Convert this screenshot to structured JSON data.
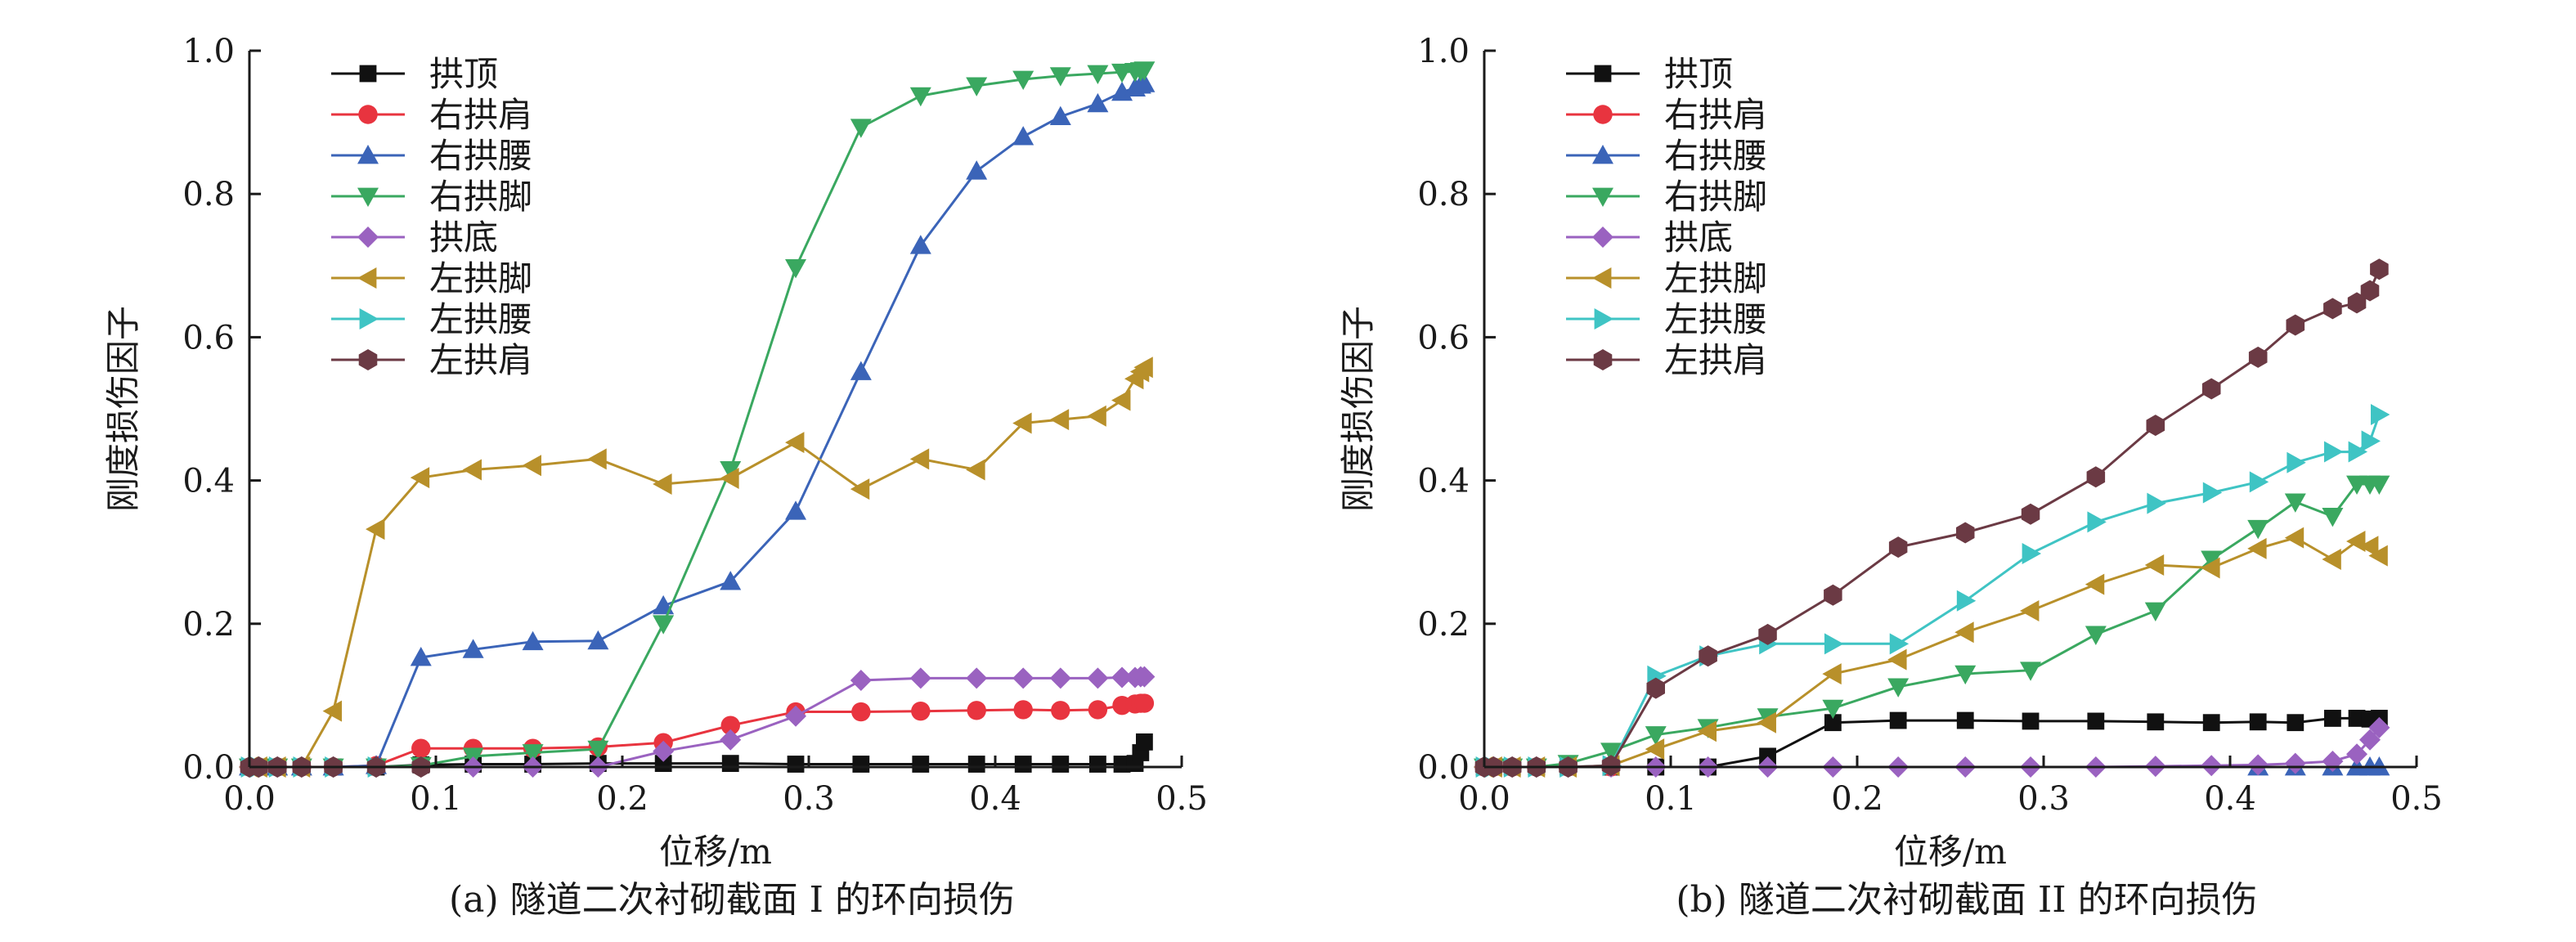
{
  "chart_data": [
    {
      "type": "line",
      "caption": "(a) 隧道二次衬砌截面 I 的环向损伤",
      "xlabel": "位移/m",
      "ylabel": "刚度损伤因子",
      "xlim": [
        0,
        0.5
      ],
      "ylim": [
        0,
        1.0
      ],
      "xticks": [
        "0.0",
        "0.1",
        "0.2",
        "0.3",
        "0.4",
        "0.5"
      ],
      "yticks": [
        "0.0",
        "0.2",
        "0.4",
        "0.6",
        "0.8",
        "1.0"
      ],
      "grid": false,
      "legend": "top-left",
      "series": [
        {
          "name": "拱顶",
          "color": "#111111",
          "marker": "square",
          "x": [
            0,
            0.005,
            0.015,
            0.028,
            0.045,
            0.068,
            0.092,
            0.12,
            0.152,
            0.187,
            0.222,
            0.258,
            0.293,
            0.328,
            0.36,
            0.39,
            0.415,
            0.435,
            0.455,
            0.468,
            0.475,
            0.478,
            0.48
          ],
          "y": [
            0,
            0,
            0,
            0,
            0,
            0,
            0.003,
            0.004,
            0.004,
            0.005,
            0.005,
            0.005,
            0.004,
            0.004,
            0.004,
            0.004,
            0.004,
            0.004,
            0.004,
            0.004,
            0.005,
            0.02,
            0.035
          ]
        },
        {
          "name": "右拱肩",
          "color": "#e8343f",
          "marker": "circle",
          "x": [
            0,
            0.005,
            0.015,
            0.028,
            0.045,
            0.068,
            0.092,
            0.12,
            0.152,
            0.187,
            0.222,
            0.258,
            0.293,
            0.328,
            0.36,
            0.39,
            0.415,
            0.435,
            0.455,
            0.468,
            0.475,
            0.478,
            0.48
          ],
          "y": [
            0,
            0,
            0,
            0,
            0,
            0.002,
            0.026,
            0.026,
            0.026,
            0.028,
            0.034,
            0.058,
            0.077,
            0.077,
            0.078,
            0.079,
            0.08,
            0.079,
            0.08,
            0.086,
            0.088,
            0.089,
            0.089
          ]
        },
        {
          "name": "右拱腰",
          "color": "#3b64b8",
          "marker": "triangle-up",
          "x": [
            0,
            0.005,
            0.015,
            0.028,
            0.045,
            0.068,
            0.092,
            0.12,
            0.152,
            0.187,
            0.222,
            0.258,
            0.293,
            0.328,
            0.36,
            0.39,
            0.415,
            0.435,
            0.455,
            0.468,
            0.475,
            0.478,
            0.48
          ],
          "y": [
            0,
            0,
            0,
            0,
            0,
            0.002,
            0.153,
            0.164,
            0.175,
            0.176,
            0.225,
            0.259,
            0.357,
            0.552,
            0.728,
            0.832,
            0.88,
            0.908,
            0.926,
            0.942,
            0.948,
            0.952,
            0.954
          ]
        },
        {
          "name": "右拱脚",
          "color": "#3aa860",
          "marker": "triangle-down",
          "x": [
            0,
            0.005,
            0.015,
            0.028,
            0.045,
            0.068,
            0.092,
            0.12,
            0.152,
            0.187,
            0.222,
            0.258,
            0.293,
            0.328,
            0.36,
            0.39,
            0.415,
            0.435,
            0.455,
            0.468,
            0.475,
            0.478,
            0.48
          ],
          "y": [
            0,
            0,
            0,
            0,
            0,
            0,
            0.002,
            0.015,
            0.02,
            0.025,
            0.2,
            0.415,
            0.697,
            0.893,
            0.937,
            0.951,
            0.96,
            0.965,
            0.968,
            0.97,
            0.971,
            0.972,
            0.973
          ]
        },
        {
          "name": "拱底",
          "color": "#9a62c0",
          "marker": "diamond",
          "x": [
            0,
            0.005,
            0.015,
            0.028,
            0.045,
            0.068,
            0.092,
            0.12,
            0.152,
            0.187,
            0.222,
            0.258,
            0.293,
            0.328,
            0.36,
            0.39,
            0.415,
            0.435,
            0.455,
            0.468,
            0.475,
            0.478,
            0.48
          ],
          "y": [
            0,
            0,
            0,
            0,
            0,
            0,
            0,
            0,
            0,
            0,
            0.022,
            0.038,
            0.071,
            0.121,
            0.124,
            0.124,
            0.124,
            0.124,
            0.124,
            0.125,
            0.125,
            0.126,
            0.126
          ]
        },
        {
          "name": "左拱脚",
          "color": "#b8902a",
          "marker": "triangle-left",
          "x": [
            0,
            0.005,
            0.015,
            0.028,
            0.045,
            0.068,
            0.092,
            0.12,
            0.152,
            0.187,
            0.222,
            0.258,
            0.293,
            0.328,
            0.36,
            0.39,
            0.415,
            0.435,
            0.455,
            0.468,
            0.475,
            0.478,
            0.48
          ],
          "y": [
            0,
            0,
            0,
            0,
            0.078,
            0.332,
            0.404,
            0.415,
            0.421,
            0.43,
            0.395,
            0.403,
            0.453,
            0.388,
            0.43,
            0.415,
            0.48,
            0.485,
            0.49,
            0.512,
            0.542,
            0.552,
            0.558
          ]
        },
        {
          "name": "左拱腰",
          "color": "#3fc4c4",
          "marker": "triangle-right",
          "x": [
            0,
            0.005,
            0.015,
            0.028,
            0.045,
            0.068
          ],
          "y": [
            0,
            0,
            0,
            0,
            0,
            0
          ]
        },
        {
          "name": "左拱肩",
          "color": "#6b3a44",
          "marker": "hexagon",
          "x": [
            0,
            0.005,
            0.015,
            0.028,
            0.045,
            0.068,
            0.092
          ],
          "y": [
            0,
            0,
            0,
            0,
            0,
            0,
            0
          ]
        }
      ]
    },
    {
      "type": "line",
      "caption": "(b) 隧道二次衬砌截面 II 的环向损伤",
      "xlabel": "位移/m",
      "ylabel": "刚度损伤因子",
      "xlim": [
        0,
        0.5
      ],
      "ylim": [
        0,
        1.0
      ],
      "xticks": [
        "0.0",
        "0.1",
        "0.2",
        "0.3",
        "0.4",
        "0.5"
      ],
      "yticks": [
        "0.0",
        "0.2",
        "0.4",
        "0.6",
        "0.8",
        "1.0"
      ],
      "grid": false,
      "legend": "top-left",
      "series": [
        {
          "name": "拱顶",
          "color": "#111111",
          "marker": "square",
          "x": [
            0,
            0.005,
            0.015,
            0.028,
            0.045,
            0.068,
            0.092,
            0.12,
            0.152,
            0.187,
            0.222,
            0.258,
            0.293,
            0.328,
            0.36,
            0.39,
            0.415,
            0.435,
            0.455,
            0.468,
            0.475,
            0.48
          ],
          "y": [
            0,
            0,
            0,
            0,
            0,
            0,
            0,
            0,
            0.015,
            0.062,
            0.065,
            0.065,
            0.064,
            0.064,
            0.063,
            0.062,
            0.063,
            0.062,
            0.068,
            0.068,
            0.067,
            0.068
          ]
        },
        {
          "name": "右拱肩",
          "color": "#e8343f",
          "marker": "circle",
          "x": [
            0,
            0.005,
            0.015,
            0.028,
            0.045,
            0.068
          ],
          "y": [
            0,
            0,
            0,
            0,
            0,
            0
          ]
        },
        {
          "name": "右拱腰",
          "color": "#3b64b8",
          "marker": "triangle-up",
          "x": [
            0.415,
            0.435,
            0.455,
            0.468,
            0.475,
            0.48
          ],
          "y": [
            0,
            0,
            0,
            0,
            0,
            0
          ]
        },
        {
          "name": "右拱脚",
          "color": "#3aa860",
          "marker": "triangle-down",
          "x": [
            0,
            0.005,
            0.015,
            0.028,
            0.045,
            0.068,
            0.092,
            0.12,
            0.152,
            0.187,
            0.222,
            0.258,
            0.293,
            0.328,
            0.36,
            0.39,
            0.415,
            0.435,
            0.455,
            0.468,
            0.475,
            0.48
          ],
          "y": [
            0,
            0,
            0,
            0,
            0.005,
            0.022,
            0.045,
            0.055,
            0.07,
            0.082,
            0.112,
            0.13,
            0.135,
            0.185,
            0.218,
            0.29,
            0.333,
            0.37,
            0.35,
            0.395,
            0.395,
            0.395
          ]
        },
        {
          "name": "拱底",
          "color": "#9a62c0",
          "marker": "diamond",
          "x": [
            0,
            0.005,
            0.015,
            0.028,
            0.045,
            0.068,
            0.092,
            0.12,
            0.152,
            0.187,
            0.222,
            0.258,
            0.293,
            0.328,
            0.36,
            0.39,
            0.415,
            0.435,
            0.455,
            0.468,
            0.475,
            0.48
          ],
          "y": [
            0,
            0,
            0,
            0,
            0,
            0,
            0,
            0,
            0,
            0,
            0,
            0,
            0,
            0,
            0.001,
            0.002,
            0.003,
            0.005,
            0.008,
            0.018,
            0.038,
            0.055
          ]
        },
        {
          "name": "左拱脚",
          "color": "#b8902a",
          "marker": "triangle-left",
          "x": [
            0,
            0.005,
            0.015,
            0.028,
            0.045,
            0.068,
            0.092,
            0.12,
            0.152,
            0.187,
            0.222,
            0.258,
            0.293,
            0.328,
            0.36,
            0.39,
            0.415,
            0.435,
            0.455,
            0.468,
            0.475,
            0.48
          ],
          "y": [
            0,
            0,
            0,
            0,
            0,
            0.002,
            0.025,
            0.05,
            0.062,
            0.13,
            0.15,
            0.188,
            0.218,
            0.255,
            0.282,
            0.278,
            0.305,
            0.32,
            0.29,
            0.315,
            0.308,
            0.295
          ]
        },
        {
          "name": "左拱腰",
          "color": "#3fc4c4",
          "marker": "triangle-right",
          "x": [
            0,
            0.005,
            0.015,
            0.028,
            0.045,
            0.068,
            0.092,
            0.12,
            0.152,
            0.187,
            0.222,
            0.258,
            0.293,
            0.328,
            0.36,
            0.39,
            0.415,
            0.435,
            0.455,
            0.468,
            0.475,
            0.48
          ],
          "y": [
            0,
            0,
            0,
            0,
            0,
            0.002,
            0.127,
            0.155,
            0.172,
            0.172,
            0.172,
            0.232,
            0.298,
            0.342,
            0.368,
            0.383,
            0.398,
            0.425,
            0.44,
            0.44,
            0.455,
            0.492
          ]
        },
        {
          "name": "左拱肩",
          "color": "#6b3a44",
          "marker": "hexagon",
          "x": [
            0,
            0.005,
            0.015,
            0.028,
            0.045,
            0.068,
            0.092,
            0.12,
            0.152,
            0.187,
            0.222,
            0.258,
            0.293,
            0.328,
            0.36,
            0.39,
            0.415,
            0.435,
            0.455,
            0.468,
            0.475,
            0.48
          ],
          "y": [
            0,
            0,
            0,
            0,
            0,
            0.002,
            0.11,
            0.155,
            0.185,
            0.24,
            0.307,
            0.327,
            0.353,
            0.405,
            0.477,
            0.528,
            0.572,
            0.617,
            0.64,
            0.648,
            0.665,
            0.695
          ]
        }
      ]
    }
  ]
}
